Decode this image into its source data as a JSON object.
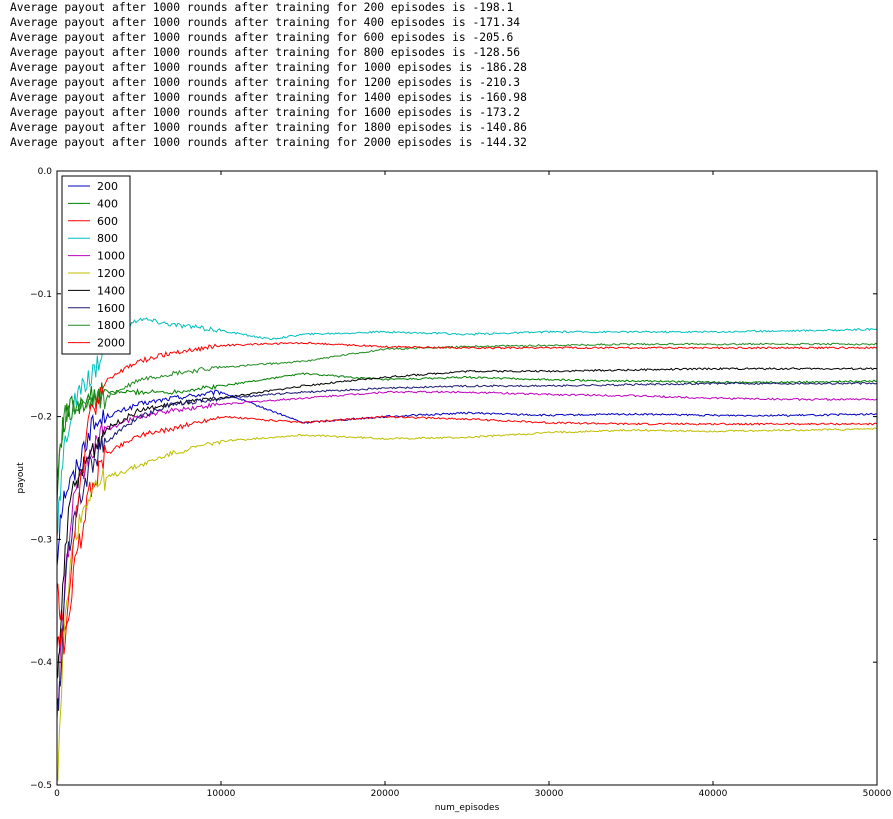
{
  "output_lines": [
    "Average payout after 1000 rounds after training for 200 episodes is -198.1",
    "Average payout after 1000 rounds after training for 400 episodes is -171.34",
    "Average payout after 1000 rounds after training for 600 episodes is -205.6",
    "Average payout after 1000 rounds after training for 800 episodes is -128.56",
    "Average payout after 1000 rounds after training for 1000 episodes is -186.28",
    "Average payout after 1000 rounds after training for 1200 episodes is -210.3",
    "Average payout after 1000 rounds after training for 1400 episodes is -160.98",
    "Average payout after 1000 rounds after training for 1600 episodes is -173.2",
    "Average payout after 1000 rounds after training for 1800 episodes is -140.86",
    "Average payout after 1000 rounds after training for 2000 episodes is -144.32"
  ],
  "chart_data": {
    "type": "line",
    "title": "",
    "xlabel": "num_episodes",
    "ylabel": "payout",
    "xlim": [
      0,
      50000
    ],
    "ylim": [
      -0.5,
      0.0
    ],
    "xticks": [
      0,
      10000,
      20000,
      30000,
      40000,
      50000
    ],
    "xtick_labels": [
      "0",
      "10000",
      "20000",
      "30000",
      "40000",
      "50000"
    ],
    "yticks": [
      0.0,
      -0.1,
      -0.2,
      -0.3,
      -0.4,
      -0.5
    ],
    "ytick_labels": [
      "0.0",
      "−0.1",
      "−0.2",
      "−0.3",
      "−0.4",
      "−0.5"
    ],
    "grid": false,
    "legend_position": "top-left",
    "series": [
      {
        "name": "200",
        "color": "#0000bf",
        "x": [
          0,
          200,
          500,
          1000,
          2000,
          3000,
          5000,
          7000,
          10000,
          15000,
          20000,
          25000,
          30000,
          35000,
          40000,
          45000,
          50000
        ],
        "y": [
          -0.32,
          -0.28,
          -0.26,
          -0.25,
          -0.21,
          -0.2,
          -0.19,
          -0.185,
          -0.18,
          -0.205,
          -0.2,
          -0.197,
          -0.199,
          -0.198,
          -0.199,
          -0.199,
          -0.198
        ]
      },
      {
        "name": "400",
        "color": "#008000",
        "x": [
          0,
          200,
          500,
          1000,
          2000,
          3000,
          5000,
          7000,
          10000,
          15000,
          20000,
          25000,
          30000,
          35000,
          40000,
          45000,
          50000
        ],
        "y": [
          -0.27,
          -0.22,
          -0.2,
          -0.19,
          -0.185,
          -0.18,
          -0.18,
          -0.18,
          -0.175,
          -0.165,
          -0.17,
          -0.168,
          -0.17,
          -0.171,
          -0.172,
          -0.172,
          -0.171
        ]
      },
      {
        "name": "600",
        "color": "#ff0000",
        "x": [
          0,
          200,
          500,
          1000,
          2000,
          3000,
          5000,
          7000,
          10000,
          15000,
          20000,
          25000,
          30000,
          35000,
          40000,
          45000,
          50000
        ],
        "y": [
          -0.34,
          -0.36,
          -0.38,
          -0.33,
          -0.26,
          -0.23,
          -0.215,
          -0.21,
          -0.2,
          -0.205,
          -0.2,
          -0.202,
          -0.205,
          -0.206,
          -0.206,
          -0.206,
          -0.206
        ]
      },
      {
        "name": "800",
        "color": "#00bfbf",
        "x": [
          0,
          200,
          500,
          1000,
          2000,
          3000,
          5000,
          7000,
          10000,
          13000,
          15000,
          20000,
          25000,
          30000,
          35000,
          40000,
          45000,
          50000
        ],
        "y": [
          -0.3,
          -0.26,
          -0.22,
          -0.19,
          -0.17,
          -0.14,
          -0.12,
          -0.125,
          -0.13,
          -0.137,
          -0.133,
          -0.131,
          -0.133,
          -0.131,
          -0.131,
          -0.131,
          -0.13,
          -0.129
        ]
      },
      {
        "name": "1000",
        "color": "#bf00bf",
        "x": [
          0,
          200,
          500,
          1000,
          2000,
          3000,
          5000,
          7000,
          10000,
          15000,
          20000,
          25000,
          30000,
          35000,
          40000,
          45000,
          50000
        ],
        "y": [
          -0.45,
          -0.4,
          -0.33,
          -0.27,
          -0.23,
          -0.21,
          -0.2,
          -0.195,
          -0.19,
          -0.185,
          -0.18,
          -0.18,
          -0.182,
          -0.183,
          -0.185,
          -0.186,
          -0.186
        ]
      },
      {
        "name": "1200",
        "color": "#bfbf00",
        "x": [
          0,
          200,
          500,
          1000,
          2000,
          3000,
          5000,
          7000,
          10000,
          15000,
          20000,
          25000,
          30000,
          35000,
          40000,
          45000,
          50000
        ],
        "y": [
          -0.5,
          -0.45,
          -0.36,
          -0.3,
          -0.26,
          -0.25,
          -0.24,
          -0.23,
          -0.22,
          -0.215,
          -0.218,
          -0.217,
          -0.213,
          -0.211,
          -0.212,
          -0.211,
          -0.21
        ]
      },
      {
        "name": "1400",
        "color": "#000000",
        "x": [
          0,
          200,
          500,
          1000,
          2000,
          3000,
          5000,
          7000,
          10000,
          15000,
          20000,
          25000,
          30000,
          35000,
          40000,
          45000,
          50000
        ],
        "y": [
          -0.42,
          -0.38,
          -0.3,
          -0.26,
          -0.23,
          -0.21,
          -0.195,
          -0.19,
          -0.185,
          -0.175,
          -0.168,
          -0.163,
          -0.163,
          -0.162,
          -0.161,
          -0.161,
          -0.161
        ]
      },
      {
        "name": "1600",
        "color": "#191970",
        "x": [
          0,
          200,
          500,
          1000,
          2000,
          3000,
          5000,
          7000,
          10000,
          15000,
          20000,
          25000,
          30000,
          35000,
          40000,
          45000,
          50000
        ],
        "y": [
          -0.44,
          -0.42,
          -0.33,
          -0.28,
          -0.24,
          -0.22,
          -0.2,
          -0.19,
          -0.185,
          -0.18,
          -0.177,
          -0.175,
          -0.175,
          -0.174,
          -0.173,
          -0.173,
          -0.173
        ]
      },
      {
        "name": "1800",
        "color": "#228b22",
        "x": [
          0,
          200,
          500,
          1000,
          2000,
          3000,
          5000,
          7000,
          10000,
          15000,
          20000,
          25000,
          30000,
          35000,
          40000,
          45000,
          50000
        ],
        "y": [
          -0.25,
          -0.22,
          -0.2,
          -0.195,
          -0.19,
          -0.185,
          -0.17,
          -0.165,
          -0.16,
          -0.155,
          -0.145,
          -0.143,
          -0.142,
          -0.141,
          -0.141,
          -0.141,
          -0.141
        ]
      },
      {
        "name": "2000",
        "color": "#ff0000",
        "x": [
          0,
          200,
          500,
          1000,
          2000,
          3000,
          5000,
          7000,
          10000,
          15000,
          20000,
          25000,
          30000,
          35000,
          40000,
          45000,
          50000
        ],
        "y": [
          -0.38,
          -0.38,
          -0.39,
          -0.3,
          -0.2,
          -0.17,
          -0.155,
          -0.148,
          -0.142,
          -0.14,
          -0.143,
          -0.144,
          -0.144,
          -0.144,
          -0.144,
          -0.144,
          -0.144
        ]
      }
    ]
  }
}
